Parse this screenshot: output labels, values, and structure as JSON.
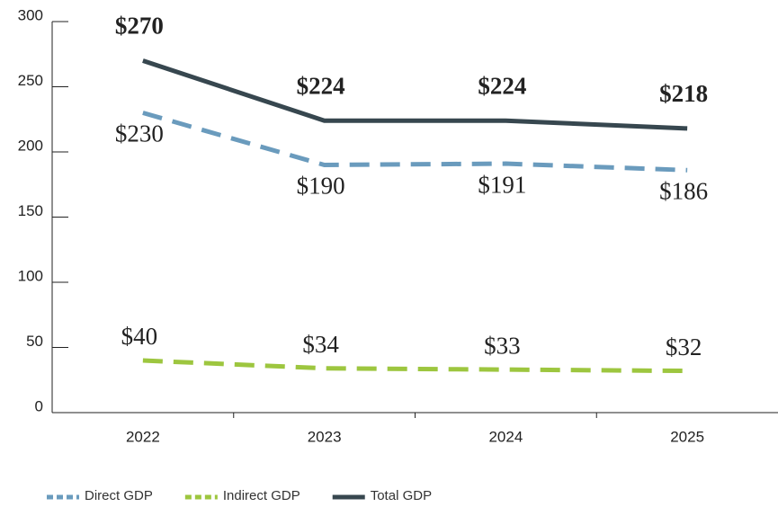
{
  "chart_data": {
    "type": "line",
    "categories": [
      "2022",
      "2023",
      "2024",
      "2025"
    ],
    "series": [
      {
        "name": "Direct GDP",
        "color": "#6a9bbd",
        "dashed": true,
        "values": [
          230,
          190,
          191,
          186
        ],
        "value_labels": [
          "$230",
          "$190",
          "$191",
          "$186"
        ]
      },
      {
        "name": "Indirect GDP",
        "color": "#9dc63f",
        "dashed": true,
        "values": [
          40,
          34,
          33,
          32
        ],
        "value_labels": [
          "$40",
          "$34",
          "$33",
          "$32"
        ]
      },
      {
        "name": "Total GDP",
        "color": "#37474f",
        "dashed": false,
        "values": [
          270,
          224,
          224,
          218
        ],
        "value_labels": [
          "$270",
          "$224",
          "$224",
          "$218"
        ]
      }
    ],
    "ylim": [
      0,
      300
    ],
    "yticks": [
      0,
      50,
      100,
      150,
      200,
      250,
      300
    ],
    "legend": "bottom-left"
  }
}
